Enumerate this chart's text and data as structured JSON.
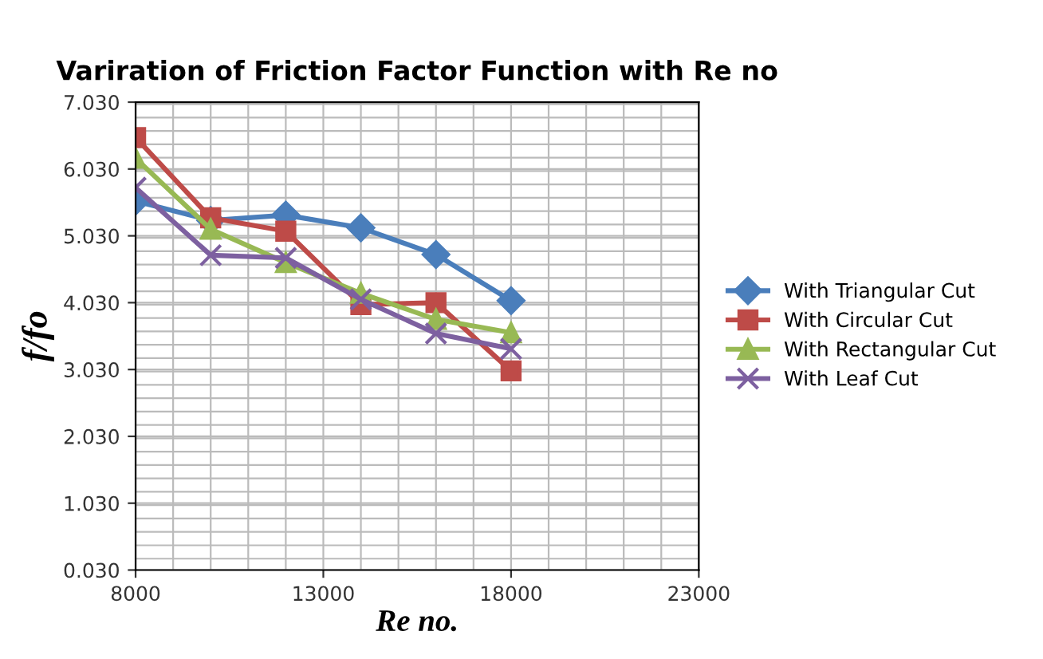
{
  "chart_data": {
    "type": "line",
    "title": "Variration of Friction Factor Function with Re no",
    "xlabel": "Re no.",
    "ylabel": "f/fo",
    "x": [
      8000,
      10000,
      12000,
      14000,
      16000,
      18000
    ],
    "series": [
      {
        "name": "With Triangular Cut",
        "color": "#4a7ebb",
        "marker": "diamond",
        "values": [
          5.55,
          5.26,
          5.34,
          5.15,
          4.75,
          4.06
        ]
      },
      {
        "name": "With Circular Cut",
        "color": "#be4b48",
        "marker": "square",
        "values": [
          6.5,
          5.3,
          5.1,
          4.0,
          4.03,
          3.01
        ]
      },
      {
        "name": "With Rectangular Cut",
        "color": "#98b954",
        "marker": "triangle",
        "values": [
          6.19,
          5.13,
          4.63,
          4.17,
          3.78,
          3.58
        ]
      },
      {
        "name": "With Leaf Cut",
        "color": "#7d60a0",
        "marker": "cross",
        "values": [
          5.75,
          4.74,
          4.7,
          4.08,
          3.57,
          3.34
        ]
      }
    ],
    "xlim": [
      8000,
      23000
    ],
    "xticks": [
      8000,
      13000,
      18000,
      23000
    ],
    "ylim": [
      0.03,
      7.03
    ],
    "yticks": [
      {
        "value": 0.03,
        "label": "0.030"
      },
      {
        "value": 1.03,
        "label": "1.030"
      },
      {
        "value": 2.03,
        "label": "2.030"
      },
      {
        "value": 3.03,
        "label": "3.030"
      },
      {
        "value": 4.03,
        "label": "4.030"
      },
      {
        "value": 5.03,
        "label": "5.030"
      },
      {
        "value": 6.03,
        "label": "6.030"
      },
      {
        "value": 7.03,
        "label": "7.030"
      }
    ],
    "grid": true,
    "legend": "right",
    "line_style": "solid"
  }
}
